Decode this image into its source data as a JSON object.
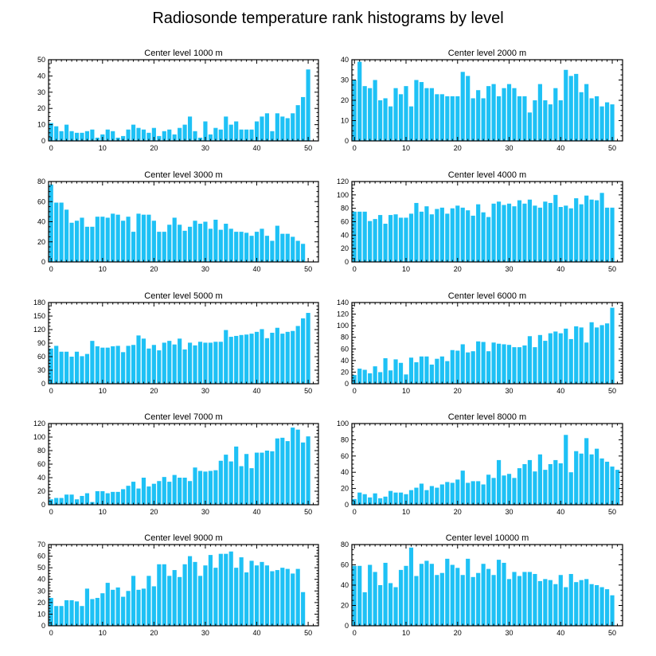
{
  "figure_title": "Radiosonde temperature rank histograms by level",
  "style": {
    "bar_color": "#1EC1F5",
    "axis_color": "#000000",
    "background": "#ffffff"
  },
  "chart_data": [
    {
      "type": "bar",
      "title": "Center level 1000 m",
      "xlim": [
        -0.5,
        52
      ],
      "ylim": [
        0,
        50
      ],
      "xticks": [
        0,
        10,
        20,
        30,
        40,
        50
      ],
      "yticks": [
        0,
        10,
        20,
        30,
        40,
        50
      ],
      "values": [
        11,
        9,
        6,
        10,
        6,
        5,
        5,
        6,
        7,
        2,
        4,
        7,
        6,
        2,
        3,
        7,
        10,
        8,
        7,
        5,
        8,
        3,
        6,
        7,
        4,
        8,
        10,
        15,
        6,
        2,
        12,
        4,
        8,
        7,
        15,
        10,
        12,
        7,
        7,
        7,
        12,
        15,
        17,
        6,
        17,
        15,
        14,
        17,
        22,
        27,
        44,
        null
      ]
    },
    {
      "type": "bar",
      "title": "Center level 2000 m",
      "xlim": [
        -0.5,
        52
      ],
      "ylim": [
        0,
        40
      ],
      "xticks": [
        0,
        10,
        20,
        30,
        40,
        50
      ],
      "yticks": [
        0,
        10,
        20,
        30,
        40
      ],
      "values": [
        30,
        39,
        27,
        26,
        30,
        20,
        21,
        17,
        26,
        23,
        27,
        17,
        30,
        29,
        26,
        26,
        23,
        23,
        22,
        22,
        22,
        34,
        32,
        21,
        25,
        21,
        27,
        28,
        22,
        26,
        28,
        26,
        22,
        22,
        14,
        20,
        28,
        20,
        18,
        26,
        20,
        35,
        32,
        33,
        24,
        28,
        21,
        22,
        17,
        19,
        18,
        null
      ]
    },
    {
      "type": "bar",
      "title": "Center level 3000 m",
      "xlim": [
        -0.5,
        52
      ],
      "ylim": [
        0,
        80
      ],
      "xticks": [
        0,
        10,
        20,
        30,
        40,
        50
      ],
      "yticks": [
        0,
        20,
        40,
        60,
        80
      ],
      "values": [
        77,
        59,
        59,
        52,
        39,
        41,
        44,
        35,
        35,
        45,
        45,
        44,
        48,
        47,
        41,
        45,
        30,
        48,
        47,
        47,
        41,
        30,
        30,
        37,
        44,
        37,
        31,
        35,
        41,
        38,
        40,
        33,
        42,
        32,
        38,
        33,
        30,
        30,
        29,
        26,
        30,
        33,
        26,
        21,
        36,
        28,
        28,
        25,
        21,
        18,
        null,
        null
      ]
    },
    {
      "type": "bar",
      "title": "Center level 4000 m",
      "xlim": [
        -0.5,
        52
      ],
      "ylim": [
        0,
        120
      ],
      "xticks": [
        0,
        10,
        20,
        30,
        40,
        50
      ],
      "yticks": [
        0,
        20,
        40,
        60,
        80,
        100,
        120
      ],
      "values": [
        75,
        75,
        75,
        61,
        64,
        70,
        57,
        70,
        71,
        66,
        66,
        72,
        88,
        75,
        83,
        71,
        79,
        81,
        72,
        80,
        84,
        81,
        77,
        69,
        86,
        74,
        67,
        87,
        90,
        85,
        87,
        83,
        92,
        87,
        93,
        84,
        81,
        90,
        88,
        100,
        82,
        84,
        80,
        95,
        86,
        99,
        93,
        92,
        103,
        81,
        81,
        null
      ]
    },
    {
      "type": "bar",
      "title": "Center level 5000 m",
      "xlim": [
        -0.5,
        52
      ],
      "ylim": [
        0,
        180
      ],
      "xticks": [
        0,
        10,
        20,
        30,
        40,
        50
      ],
      "yticks": [
        0,
        30,
        60,
        90,
        120,
        150,
        180
      ],
      "values": [
        78,
        84,
        71,
        71,
        60,
        71,
        61,
        66,
        95,
        83,
        80,
        80,
        83,
        84,
        70,
        84,
        86,
        107,
        100,
        78,
        86,
        74,
        91,
        95,
        87,
        100,
        76,
        91,
        85,
        93,
        91,
        91,
        93,
        93,
        119,
        104,
        106,
        108,
        109,
        111,
        115,
        121,
        101,
        113,
        124,
        111,
        115,
        117,
        128,
        145,
        157,
        null
      ]
    },
    {
      "type": "bar",
      "title": "Center level 6000 m",
      "xlim": [
        -0.5,
        52
      ],
      "ylim": [
        0,
        140
      ],
      "xticks": [
        0,
        10,
        20,
        30,
        40,
        50
      ],
      "yticks": [
        0,
        20,
        40,
        60,
        80,
        100,
        120,
        140
      ],
      "values": [
        15,
        26,
        24,
        18,
        30,
        20,
        44,
        23,
        42,
        36,
        16,
        45,
        37,
        47,
        47,
        33,
        43,
        47,
        39,
        58,
        57,
        68,
        54,
        56,
        73,
        72,
        56,
        71,
        69,
        68,
        67,
        63,
        63,
        66,
        82,
        63,
        84,
        74,
        87,
        90,
        87,
        95,
        77,
        99,
        97,
        71,
        106,
        97,
        101,
        104,
        131,
        null
      ]
    },
    {
      "type": "bar",
      "title": "Center level 7000 m",
      "xlim": [
        -0.5,
        52
      ],
      "ylim": [
        0,
        120
      ],
      "xticks": [
        0,
        10,
        20,
        30,
        40,
        50
      ],
      "yticks": [
        0,
        20,
        40,
        60,
        80,
        100,
        120
      ],
      "values": [
        8,
        10,
        10,
        15,
        15,
        8,
        13,
        17,
        4,
        20,
        20,
        17,
        19,
        19,
        23,
        28,
        34,
        24,
        40,
        27,
        31,
        35,
        41,
        34,
        44,
        40,
        40,
        35,
        55,
        50,
        49,
        50,
        51,
        65,
        74,
        64,
        86,
        57,
        75,
        54,
        77,
        77,
        80,
        79,
        98,
        99,
        94,
        114,
        111,
        92,
        101,
        null
      ]
    },
    {
      "type": "bar",
      "title": "Center level 8000 m",
      "xlim": [
        -0.5,
        52
      ],
      "ylim": [
        0,
        100
      ],
      "xticks": [
        0,
        10,
        20,
        30,
        40,
        50
      ],
      "yticks": [
        0,
        20,
        40,
        60,
        80,
        100
      ],
      "values": [
        7,
        15,
        13,
        9,
        14,
        8,
        10,
        17,
        15,
        15,
        13,
        18,
        21,
        26,
        18,
        23,
        21,
        25,
        28,
        27,
        31,
        42,
        27,
        29,
        29,
        25,
        37,
        33,
        55,
        36,
        38,
        33,
        45,
        50,
        55,
        41,
        62,
        43,
        50,
        55,
        51,
        86,
        40,
        66,
        63,
        82,
        62,
        69,
        57,
        53,
        47,
        43,
        null
      ]
    },
    {
      "type": "bar",
      "title": "Center level 9000 m",
      "xlim": [
        -0.5,
        52
      ],
      "ylim": [
        0,
        70
      ],
      "xticks": [
        0,
        10,
        20,
        30,
        40,
        50
      ],
      "yticks": [
        0,
        10,
        20,
        30,
        40,
        50,
        60,
        70
      ],
      "values": [
        24,
        17,
        17,
        22,
        22,
        21,
        17,
        32,
        23,
        24,
        28,
        37,
        31,
        33,
        25,
        30,
        43,
        31,
        32,
        43,
        34,
        53,
        53,
        43,
        48,
        42,
        53,
        60,
        55,
        43,
        52,
        61,
        50,
        62,
        62,
        64,
        50,
        59,
        46,
        56,
        52,
        55,
        52,
        47,
        48,
        50,
        49,
        45,
        49,
        29,
        null,
        null
      ]
    },
    {
      "type": "bar",
      "title": "Center level 10000 m",
      "xlim": [
        -0.5,
        52
      ],
      "ylim": [
        0,
        80
      ],
      "xticks": [
        0,
        10,
        20,
        30,
        40,
        50
      ],
      "yticks": [
        0,
        20,
        40,
        60,
        80
      ],
      "values": [
        59,
        59,
        33,
        60,
        53,
        40,
        62,
        42,
        38,
        55,
        59,
        77,
        49,
        61,
        64,
        61,
        50,
        52,
        66,
        60,
        57,
        50,
        66,
        48,
        52,
        61,
        56,
        50,
        65,
        62,
        46,
        53,
        49,
        53,
        53,
        51,
        44,
        46,
        45,
        41,
        50,
        38,
        51,
        43,
        45,
        46,
        41,
        40,
        38,
        36,
        30,
        null
      ]
    }
  ]
}
